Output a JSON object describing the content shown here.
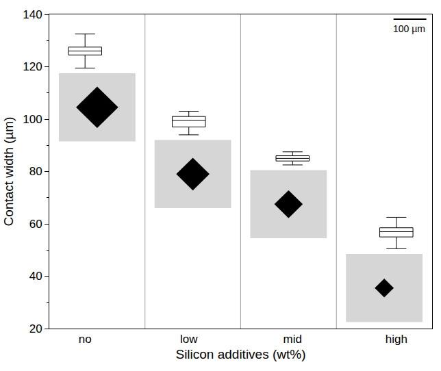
{
  "chart_data": {
    "type": "box",
    "x_label": "Silicon additives (wt%)",
    "y_label": "Contact width (µm)",
    "categories": [
      "no",
      "low",
      "mid",
      "high"
    ],
    "min": [
      119.5,
      94,
      82.5,
      50.5
    ],
    "q1": [
      124.5,
      97,
      84,
      55
    ],
    "median": [
      126,
      99.5,
      85,
      57
    ],
    "q3": [
      127.5,
      101,
      86,
      58.5
    ],
    "max": [
      132.5,
      103,
      87.5,
      62.5
    ],
    "color": "#000000",
    "ylim": [
      20,
      140
    ],
    "yticks": [
      20,
      40,
      60,
      80,
      100,
      120,
      140
    ],
    "grid": false,
    "annotations": [
      "100 µm"
    ]
  }
}
